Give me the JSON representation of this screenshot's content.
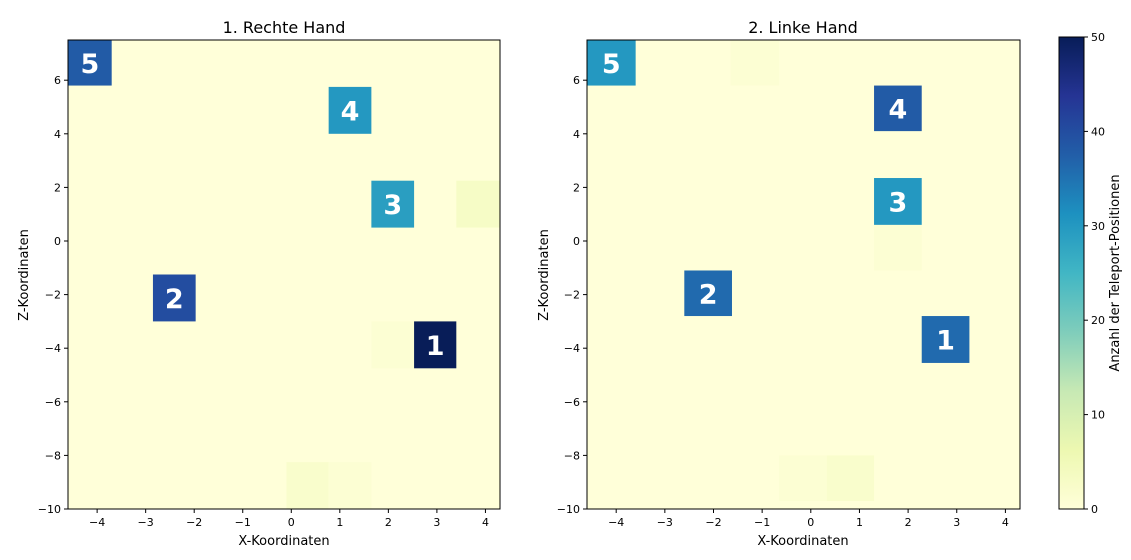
{
  "chart_data": [
    {
      "type": "heatmap",
      "title": "1. Rechte Hand",
      "xlabel": "X-Koordinaten",
      "ylabel": "Z-Koordinaten",
      "xlim": [
        -4.6,
        4.3
      ],
      "ylim": [
        -10,
        7.5
      ],
      "xticks": [
        -4,
        -3,
        -2,
        -1,
        0,
        1,
        2,
        3,
        4
      ],
      "yticks": [
        -10,
        -8,
        -6,
        -4,
        -2,
        0,
        2,
        4,
        6
      ],
      "background_value": 0,
      "cells": [
        {
          "x0": -4.6,
          "x1": -3.7,
          "y0": 5.8,
          "y1": 7.5,
          "value": 38,
          "label": "5"
        },
        {
          "x0": 0.77,
          "x1": 1.65,
          "y0": 4.0,
          "y1": 5.75,
          "value": 30,
          "label": "4"
        },
        {
          "x0": 1.65,
          "x1": 2.53,
          "y0": 0.5,
          "y1": 2.25,
          "value": 29,
          "label": "3"
        },
        {
          "x0": 3.4,
          "x1": 4.3,
          "y0": 0.5,
          "y1": 2.25,
          "value": 3,
          "label": ""
        },
        {
          "x0": -2.85,
          "x1": -1.97,
          "y0": -3.0,
          "y1": -1.25,
          "value": 40,
          "label": "2"
        },
        {
          "x0": 1.65,
          "x1": 2.53,
          "y0": -4.75,
          "y1": -3.0,
          "value": 1,
          "label": ""
        },
        {
          "x0": 2.53,
          "x1": 3.4,
          "y0": -4.75,
          "y1": -3.0,
          "value": 50,
          "label": "1"
        },
        {
          "x0": -0.1,
          "x1": 0.77,
          "y0": -10,
          "y1": -8.25,
          "value": 2,
          "label": ""
        },
        {
          "x0": 0.77,
          "x1": 1.65,
          "y0": -10,
          "y1": -8.25,
          "value": 1,
          "label": ""
        }
      ]
    },
    {
      "type": "heatmap",
      "title": "2. Linke Hand",
      "xlabel": "X-Koordinaten",
      "ylabel": "Z-Koordinaten",
      "xlim": [
        -4.6,
        4.3
      ],
      "ylim": [
        -10,
        7.5
      ],
      "xticks": [
        -4,
        -3,
        -2,
        -1,
        0,
        1,
        2,
        3,
        4
      ],
      "yticks": [
        -10,
        -8,
        -6,
        -4,
        -2,
        0,
        2,
        4,
        6
      ],
      "background_value": 0,
      "cells": [
        {
          "x0": -4.6,
          "x1": -3.6,
          "y0": 5.8,
          "y1": 7.5,
          "value": 30,
          "label": "5"
        },
        {
          "x0": -1.65,
          "x1": -0.65,
          "y0": 5.8,
          "y1": 7.5,
          "value": 1,
          "label": ""
        },
        {
          "x0": 1.3,
          "x1": 2.28,
          "y0": 4.1,
          "y1": 5.8,
          "value": 38,
          "label": "4"
        },
        {
          "x0": 1.3,
          "x1": 2.28,
          "y0": 0.6,
          "y1": 2.35,
          "value": 30,
          "label": "3"
        },
        {
          "x0": 1.3,
          "x1": 2.28,
          "y0": -1.1,
          "y1": 0.6,
          "value": 1,
          "label": ""
        },
        {
          "x0": -2.6,
          "x1": -1.62,
          "y0": -2.8,
          "y1": -1.1,
          "value": 36,
          "label": "2"
        },
        {
          "x0": 2.28,
          "x1": 3.26,
          "y0": -4.55,
          "y1": -2.8,
          "value": 36,
          "label": "1"
        },
        {
          "x0": -0.65,
          "x1": 0.33,
          "y0": -9.7,
          "y1": -8.0,
          "value": 1,
          "label": ""
        },
        {
          "x0": 0.33,
          "x1": 1.3,
          "y0": -9.7,
          "y1": -8.0,
          "value": 2,
          "label": ""
        }
      ]
    }
  ],
  "colorbar": {
    "label": "Anzahl der Teleport-Positionen",
    "min": 0,
    "max": 50,
    "ticks": [
      0,
      10,
      20,
      30,
      40,
      50
    ],
    "colormap": "YlGnBu",
    "stops": [
      "#ffffd9",
      "#edf8b1",
      "#c7e9b4",
      "#7fcdbb",
      "#41b6c4",
      "#1d91c0",
      "#225ea8",
      "#253494",
      "#081d58"
    ]
  }
}
